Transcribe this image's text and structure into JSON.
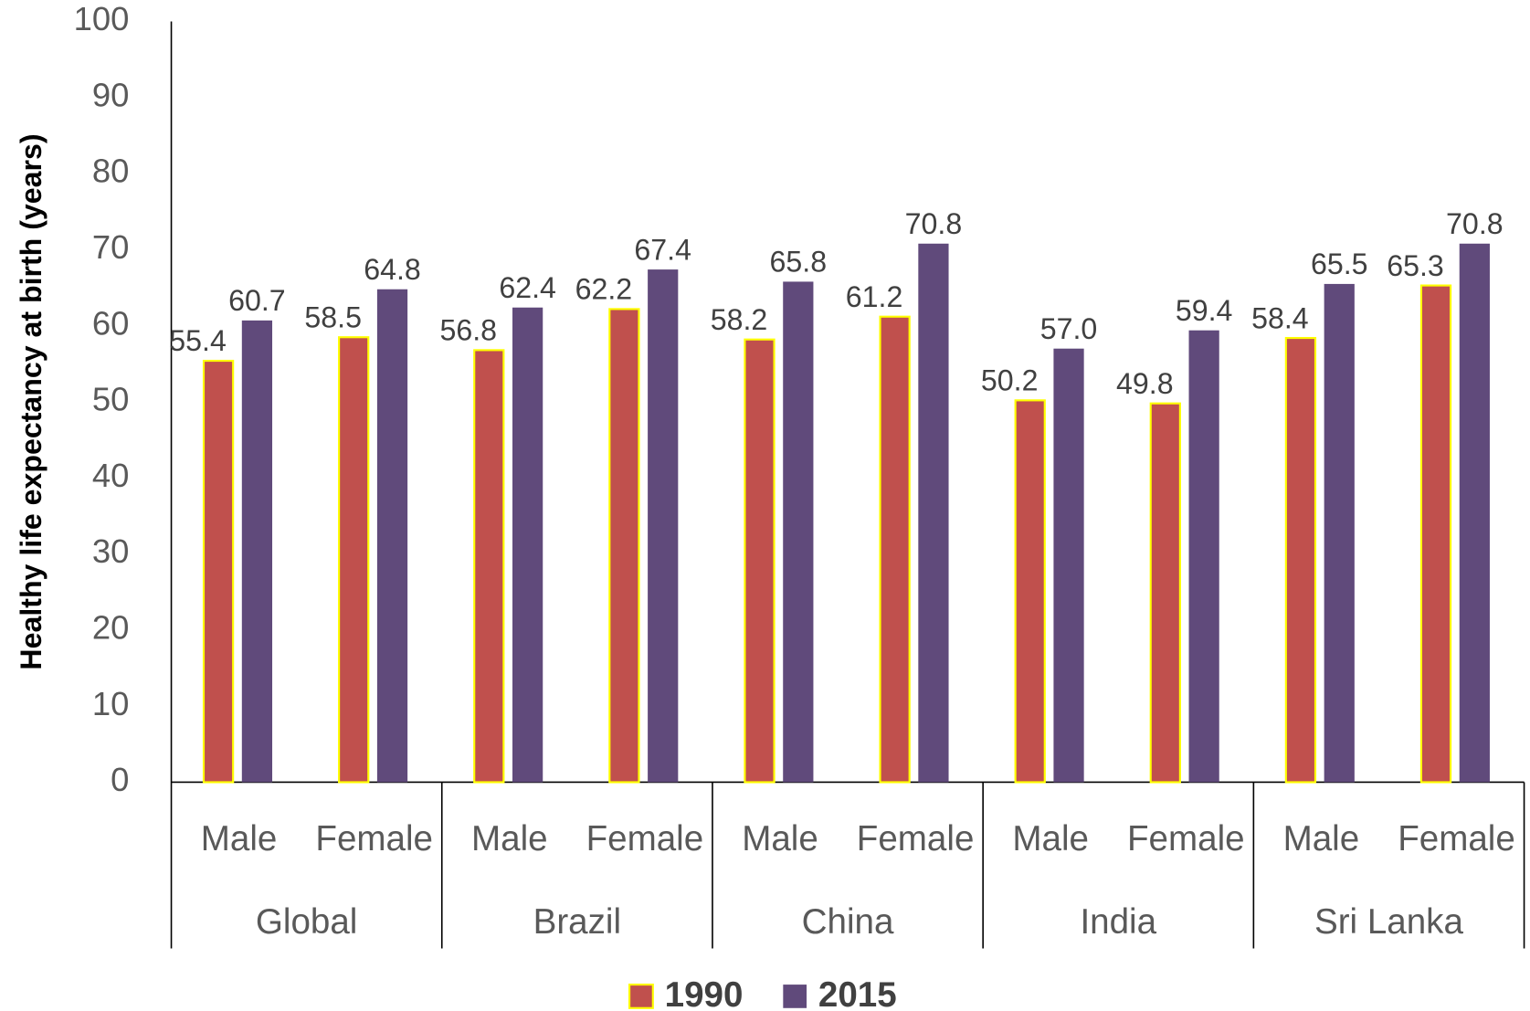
{
  "chart_data": {
    "type": "bar",
    "y_label": "Healthy life expectancy at birth (years)",
    "categories": [
      "Male",
      "Female",
      "Male",
      "Female",
      "Male",
      "Female",
      "Male",
      "Female",
      "Male",
      "Female"
    ],
    "groups": [
      "Global",
      "Brazil",
      "China",
      "India",
      "Sri Lanka"
    ],
    "series": [
      {
        "name": "1990",
        "color": "#c0504d",
        "edge_color": "#ffff00",
        "values": [
          55.4,
          58.5,
          56.8,
          62.2,
          58.2,
          61.2,
          50.2,
          49.8,
          58.4,
          65.3
        ],
        "value_labels": [
          "55.4",
          "58.5",
          "56.8",
          "62.2",
          "58.2",
          "61.2",
          "50.2",
          "49.8",
          "58.4",
          "65.3"
        ]
      },
      {
        "name": "2015",
        "color": "#604a7b",
        "values": [
          60.7,
          64.8,
          62.4,
          67.4,
          65.8,
          70.8,
          57.0,
          59.4,
          65.5,
          70.8
        ],
        "value_labels": [
          "60.7",
          "64.8",
          "62.4",
          "67.4",
          "65.8",
          "70.8",
          "57.0",
          "59.4",
          "65.5",
          "70.8"
        ]
      }
    ],
    "ylim": [
      0,
      100
    ],
    "yticks": [
      0,
      10,
      20,
      30,
      40,
      50,
      60,
      70,
      80,
      90,
      100
    ],
    "grid": false,
    "legend": "bottom"
  }
}
